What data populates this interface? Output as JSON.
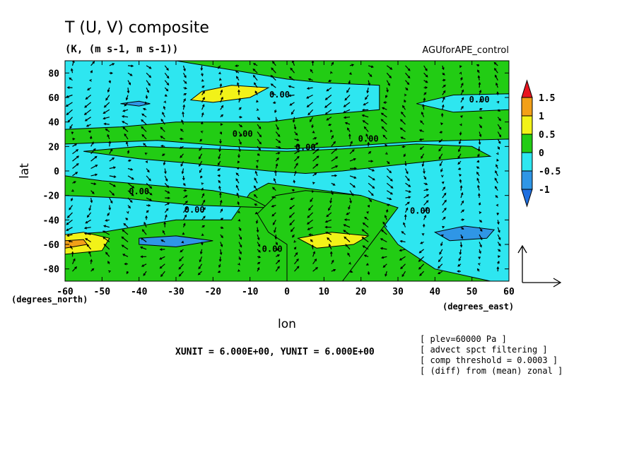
{
  "title": "T (U, V) composite",
  "subtitle": "(K, (m s-1, m s-1))",
  "run_label": "AGUforAPE_control",
  "x_axis": {
    "label": "lon",
    "unit": "(degrees_east)"
  },
  "y_axis": {
    "label": "lat",
    "unit": "(degrees_north)"
  },
  "vector_units": "XUNIT = 6.000E+00, YUNIT = 6.000E+00",
  "notes": [
    "[ plev=60000 Pa ]",
    "[ advect spct filtering ]",
    "[ comp threshold = 0.0003 ]",
    "[ (diff) from (mean) zonal ]"
  ],
  "colors": {
    "lt_minus1": "#1e6fe0",
    "m1_to_m05": "#2f96e6",
    "m05_to_0": "#2ee6f0",
    "0_to_05": "#22cc14",
    "05_to_1": "#f2f218",
    "1_to_15": "#f2a018",
    "gt_15": "#e8141e"
  },
  "chart_data": {
    "type": "heatmap",
    "xlim": [
      -60,
      60
    ],
    "ylim": [
      -90,
      90
    ],
    "x_ticks": [
      -60,
      -50,
      -40,
      -30,
      -20,
      -10,
      0,
      10,
      20,
      30,
      40,
      50,
      60
    ],
    "y_ticks": [
      -80,
      -60,
      -40,
      -20,
      0,
      20,
      40,
      60,
      80
    ],
    "colorbar": {
      "levels": [
        "-1",
        "-0.5",
        "0",
        "0.5",
        "1",
        "1.5"
      ],
      "colors": [
        "#1e6fe0",
        "#2f96e6",
        "#2ee6f0",
        "#22cc14",
        "#f2f218",
        "#f2a018",
        "#e8141e"
      ]
    },
    "contour_labels": [
      {
        "text": "0.00",
        "lon": -2,
        "lat": 60
      },
      {
        "text": "0.00",
        "lon": 52,
        "lat": 56
      },
      {
        "text": "0.00",
        "lon": -12,
        "lat": 28
      },
      {
        "text": "0.00",
        "lon": 5,
        "lat": 17
      },
      {
        "text": "0.00",
        "lon": 22,
        "lat": 24
      },
      {
        "text": "0.00",
        "lon": -40,
        "lat": -19
      },
      {
        "text": "0.00",
        "lon": -25,
        "lat": -34
      },
      {
        "text": "0.00",
        "lon": -4,
        "lat": -66
      },
      {
        "text": "0.00",
        "lon": 36,
        "lat": -35
      }
    ],
    "regions": [
      {
        "level": "m05_to_0",
        "polygon": [
          [
            -60,
            90
          ],
          [
            -30,
            90
          ],
          [
            -10,
            80
          ],
          [
            0,
            75
          ],
          [
            10,
            72
          ],
          [
            25,
            70
          ],
          [
            25,
            50
          ],
          [
            10,
            46
          ],
          [
            -5,
            40
          ],
          [
            -30,
            40
          ],
          [
            -45,
            36
          ],
          [
            -60,
            34
          ]
        ]
      },
      {
        "level": "m05_to_0",
        "polygon": [
          [
            35,
            55
          ],
          [
            45,
            62
          ],
          [
            60,
            63
          ],
          [
            60,
            50
          ],
          [
            45,
            48
          ]
        ]
      },
      {
        "level": "m05_to_0",
        "polygon": [
          [
            -60,
            22
          ],
          [
            -35,
            25
          ],
          [
            -15,
            20
          ],
          [
            0,
            18
          ],
          [
            15,
            20
          ],
          [
            35,
            24
          ],
          [
            60,
            26
          ],
          [
            60,
            -90
          ],
          [
            55,
            -90
          ],
          [
            40,
            -80
          ],
          [
            30,
            -60
          ],
          [
            25,
            -40
          ],
          [
            20,
            -20
          ],
          [
            5,
            -14
          ],
          [
            -5,
            -10
          ],
          [
            -10,
            -18
          ],
          [
            -15,
            -40
          ],
          [
            -30,
            -40
          ],
          [
            -50,
            -50
          ],
          [
            -60,
            -52
          ]
        ]
      },
      {
        "level": "0_to_05",
        "polygon": [
          [
            -55,
            16
          ],
          [
            -40,
            10
          ],
          [
            -25,
            6
          ],
          [
            -15,
            3
          ],
          [
            -5,
            0
          ],
          [
            5,
            -2
          ],
          [
            15,
            0
          ],
          [
            30,
            5
          ],
          [
            45,
            10
          ],
          [
            55,
            12
          ],
          [
            50,
            20
          ],
          [
            35,
            22
          ],
          [
            15,
            18
          ],
          [
            0,
            16
          ],
          [
            -20,
            18
          ],
          [
            -40,
            20
          ]
        ]
      },
      {
        "level": "0_to_05",
        "polygon": [
          [
            -60,
            -4
          ],
          [
            -50,
            -8
          ],
          [
            -35,
            -12
          ],
          [
            -20,
            -16
          ],
          [
            -10,
            -22
          ],
          [
            -5,
            -30
          ],
          [
            -25,
            -28
          ],
          [
            -45,
            -22
          ],
          [
            -60,
            -20
          ]
        ]
      },
      {
        "level": "0_to_05",
        "polygon": [
          [
            5,
            -16
          ],
          [
            20,
            -20
          ],
          [
            30,
            -30
          ],
          [
            25,
            -50
          ],
          [
            20,
            -70
          ],
          [
            15,
            -90
          ],
          [
            0,
            -90
          ],
          [
            0,
            -60
          ],
          [
            -5,
            -50
          ],
          [
            -8,
            -35
          ],
          [
            -3,
            -20
          ]
        ]
      },
      {
        "level": "m1_to_m05",
        "polygon": [
          [
            -45,
            55
          ],
          [
            -40,
            57
          ],
          [
            -37,
            55
          ],
          [
            -40,
            53
          ]
        ]
      },
      {
        "level": "m1_to_m05",
        "polygon": [
          [
            -40,
            -55
          ],
          [
            -30,
            -53
          ],
          [
            -20,
            -57
          ],
          [
            -30,
            -62
          ],
          [
            -40,
            -60
          ]
        ]
      },
      {
        "level": "m1_to_m05",
        "polygon": [
          [
            40,
            -50
          ],
          [
            48,
            -45
          ],
          [
            56,
            -48
          ],
          [
            54,
            -55
          ],
          [
            44,
            -57
          ]
        ]
      },
      {
        "level": "05_to_1",
        "polygon": [
          [
            -23,
            65
          ],
          [
            -15,
            70
          ],
          [
            -5,
            68
          ],
          [
            -10,
            60
          ],
          [
            -20,
            56
          ],
          [
            -26,
            58
          ]
        ]
      },
      {
        "level": "05_to_1",
        "polygon": [
          [
            -60,
            -52
          ],
          [
            -55,
            -50
          ],
          [
            -48,
            -55
          ],
          [
            -50,
            -65
          ],
          [
            -60,
            -68
          ]
        ]
      },
      {
        "level": "05_to_1",
        "polygon": [
          [
            3,
            -55
          ],
          [
            12,
            -50
          ],
          [
            22,
            -53
          ],
          [
            18,
            -60
          ],
          [
            8,
            -63
          ]
        ]
      },
      {
        "level": "1_to_15",
        "polygon": [
          [
            -60,
            -57
          ],
          [
            -55,
            -56
          ],
          [
            -54,
            -60
          ],
          [
            -60,
            -63
          ]
        ]
      }
    ]
  }
}
